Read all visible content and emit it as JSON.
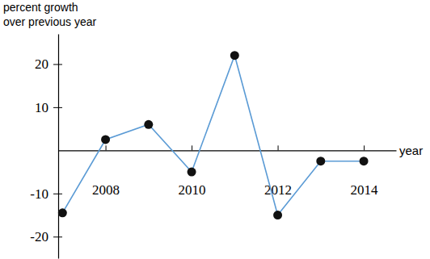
{
  "chart_data": {
    "type": "line",
    "xlabel": "year",
    "ylabel": [
      "percent growth",
      "over previous year"
    ],
    "x": [
      2007,
      2008,
      2009,
      2010,
      2011,
      2012,
      2013,
      2014
    ],
    "series": [
      {
        "color": "#5b9bd5",
        "marker": "circle",
        "values": [
          -14.5,
          2.5,
          6,
          -5,
          22,
          -15,
          -2.5,
          -2.5
        ]
      }
    ],
    "xlim": [
      2006.9,
      2014.75
    ],
    "ylim": [
      -25,
      27
    ],
    "xticks": [
      2008,
      2010,
      2012,
      2014
    ],
    "yticks": [
      -20,
      -10,
      10,
      20
    ],
    "grid": false
  }
}
